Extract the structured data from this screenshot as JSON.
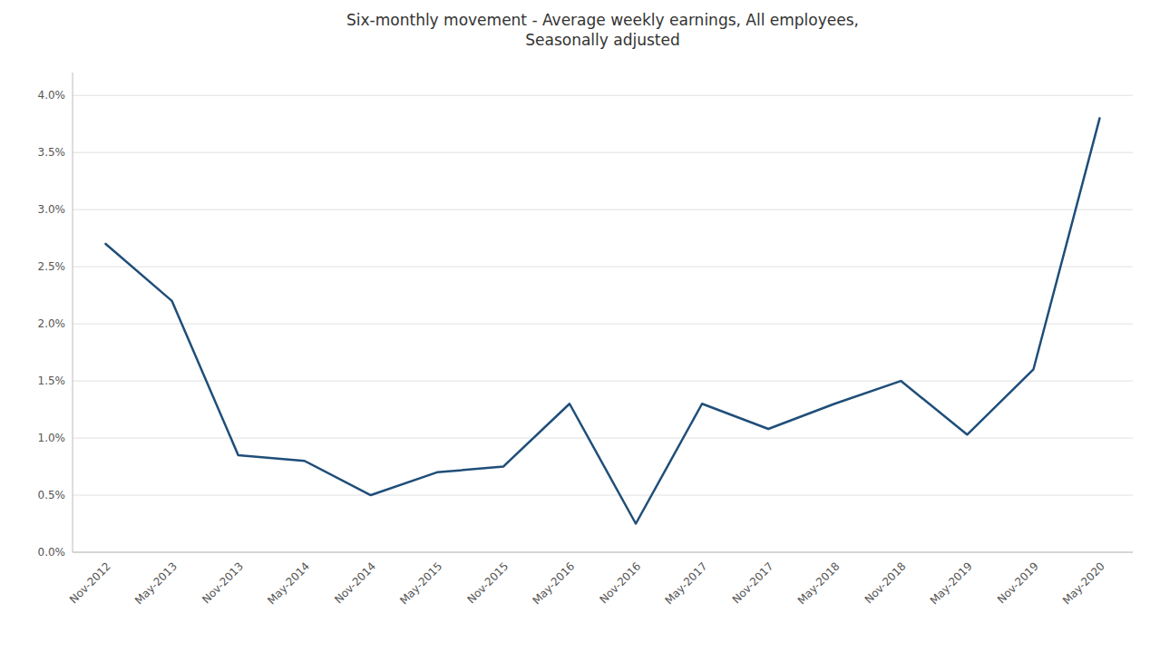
{
  "chart_data": {
    "type": "line",
    "title": "Six-monthly movement - Average weekly earnings, All employees,\nSeasonally adjusted",
    "categories": [
      "Nov-2012",
      "May-2013",
      "Nov-2013",
      "May-2014",
      "Nov-2014",
      "May-2015",
      "Nov-2015",
      "May-2016",
      "Nov-2016",
      "May-2017",
      "Nov-2017",
      "May-2018",
      "Nov-2018",
      "May-2019",
      "Nov-2019",
      "May-2020"
    ],
    "values": [
      0.027,
      0.022,
      0.0085,
      0.008,
      0.005,
      0.007,
      0.0075,
      0.013,
      0.0025,
      0.013,
      0.0108,
      0.013,
      0.015,
      0.0103,
      0.016,
      0.038
    ],
    "color": "#1f4e79",
    "ylim": [
      0.0,
      0.042
    ],
    "yticks": [
      {
        "value": 0.0,
        "label": "0.0%"
      },
      {
        "value": 0.005,
        "label": "0.5%"
      },
      {
        "value": 0.01,
        "label": "1.0%"
      },
      {
        "value": 0.015,
        "label": "1.5%"
      },
      {
        "value": 0.02,
        "label": "2.0%"
      },
      {
        "value": 0.025,
        "label": "2.5%"
      },
      {
        "value": 0.03,
        "label": "3.0%"
      },
      {
        "value": 0.035,
        "label": "3.5%"
      },
      {
        "value": 0.04,
        "label": "4.0%"
      }
    ],
    "grid": true
  }
}
